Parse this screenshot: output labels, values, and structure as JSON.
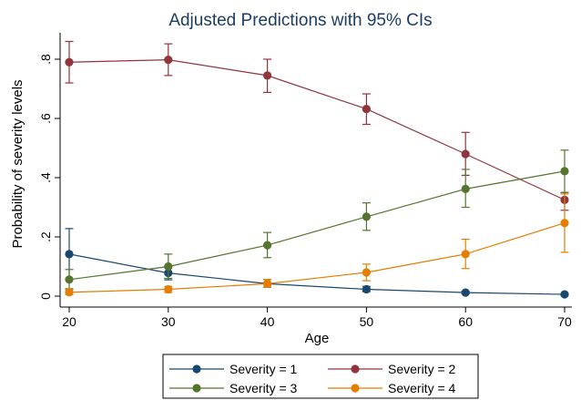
{
  "chart_data": {
    "type": "line",
    "title": "Adjusted Predictions with 95% CIs",
    "xlabel": "Age",
    "ylabel": "Probability of severity levels",
    "x": [
      20,
      30,
      40,
      50,
      60,
      70
    ],
    "xlim": [
      20,
      70
    ],
    "ylim": [
      0,
      0.9
    ],
    "x_ticks": [
      "20",
      "30",
      "40",
      "50",
      "60",
      "70"
    ],
    "y_ticks": [
      {
        "value": 0,
        "label": "0"
      },
      {
        "value": 0.2,
        "label": ".2"
      },
      {
        "value": 0.4,
        "label": ".4"
      },
      {
        "value": 0.6,
        "label": ".6"
      },
      {
        "value": 0.8,
        "label": ".8"
      }
    ],
    "grid": false,
    "legend_position": "bottom",
    "series": [
      {
        "name": "Severity = 1",
        "color": "#1a476f",
        "values": [
          0.142,
          0.078,
          0.042,
          0.023,
          0.012,
          0.006
        ],
        "ci_low": [
          0.058,
          0.055,
          0.03,
          0.015,
          0.008,
          0.003
        ],
        "ci_high": [
          0.228,
          0.102,
          0.056,
          0.033,
          0.017,
          0.01
        ]
      },
      {
        "name": "Severity = 2",
        "color": "#90353b",
        "values": [
          0.79,
          0.798,
          0.745,
          0.632,
          0.48,
          0.325
        ],
        "ci_low": [
          0.72,
          0.745,
          0.688,
          0.58,
          0.408,
          0.29
        ],
        "ci_high": [
          0.86,
          0.852,
          0.8,
          0.683,
          0.553,
          0.35
        ]
      },
      {
        "name": "Severity = 3",
        "color": "#55752f",
        "values": [
          0.056,
          0.1,
          0.172,
          0.268,
          0.362,
          0.422
        ],
        "ci_low": [
          0.025,
          0.06,
          0.13,
          0.222,
          0.3,
          0.35
        ],
        "ci_high": [
          0.09,
          0.142,
          0.215,
          0.315,
          0.428,
          0.493
        ]
      },
      {
        "name": "Severity = 4",
        "color": "#e37e00",
        "values": [
          0.013,
          0.023,
          0.042,
          0.08,
          0.142,
          0.247
        ],
        "ci_low": [
          0.005,
          0.012,
          0.03,
          0.052,
          0.093,
          0.148
        ],
        "ci_high": [
          0.022,
          0.033,
          0.056,
          0.108,
          0.192,
          0.345
        ]
      }
    ]
  }
}
